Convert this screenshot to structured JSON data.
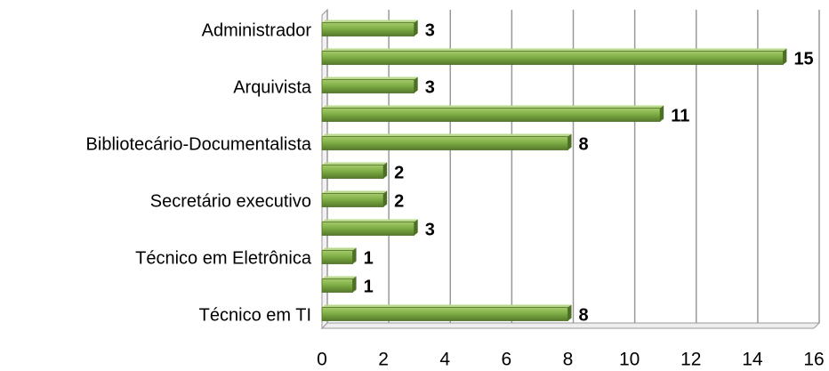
{
  "chart_data": {
    "type": "bar",
    "orientation": "horizontal",
    "categories": [
      "Administrador",
      null,
      "Arquivista",
      null,
      "Bibliotecário-Documentalista",
      null,
      "Secretário executivo",
      null,
      "Técnico em Eletrônica",
      null,
      "Técnico em TI"
    ],
    "values": [
      3,
      15,
      3,
      11,
      8,
      2,
      2,
      3,
      1,
      1,
      8
    ],
    "color": "#77a33f",
    "xlim": [
      0,
      16
    ],
    "xticks": [
      0,
      2,
      4,
      6,
      8,
      10,
      12,
      14,
      16
    ],
    "grid": true
  }
}
